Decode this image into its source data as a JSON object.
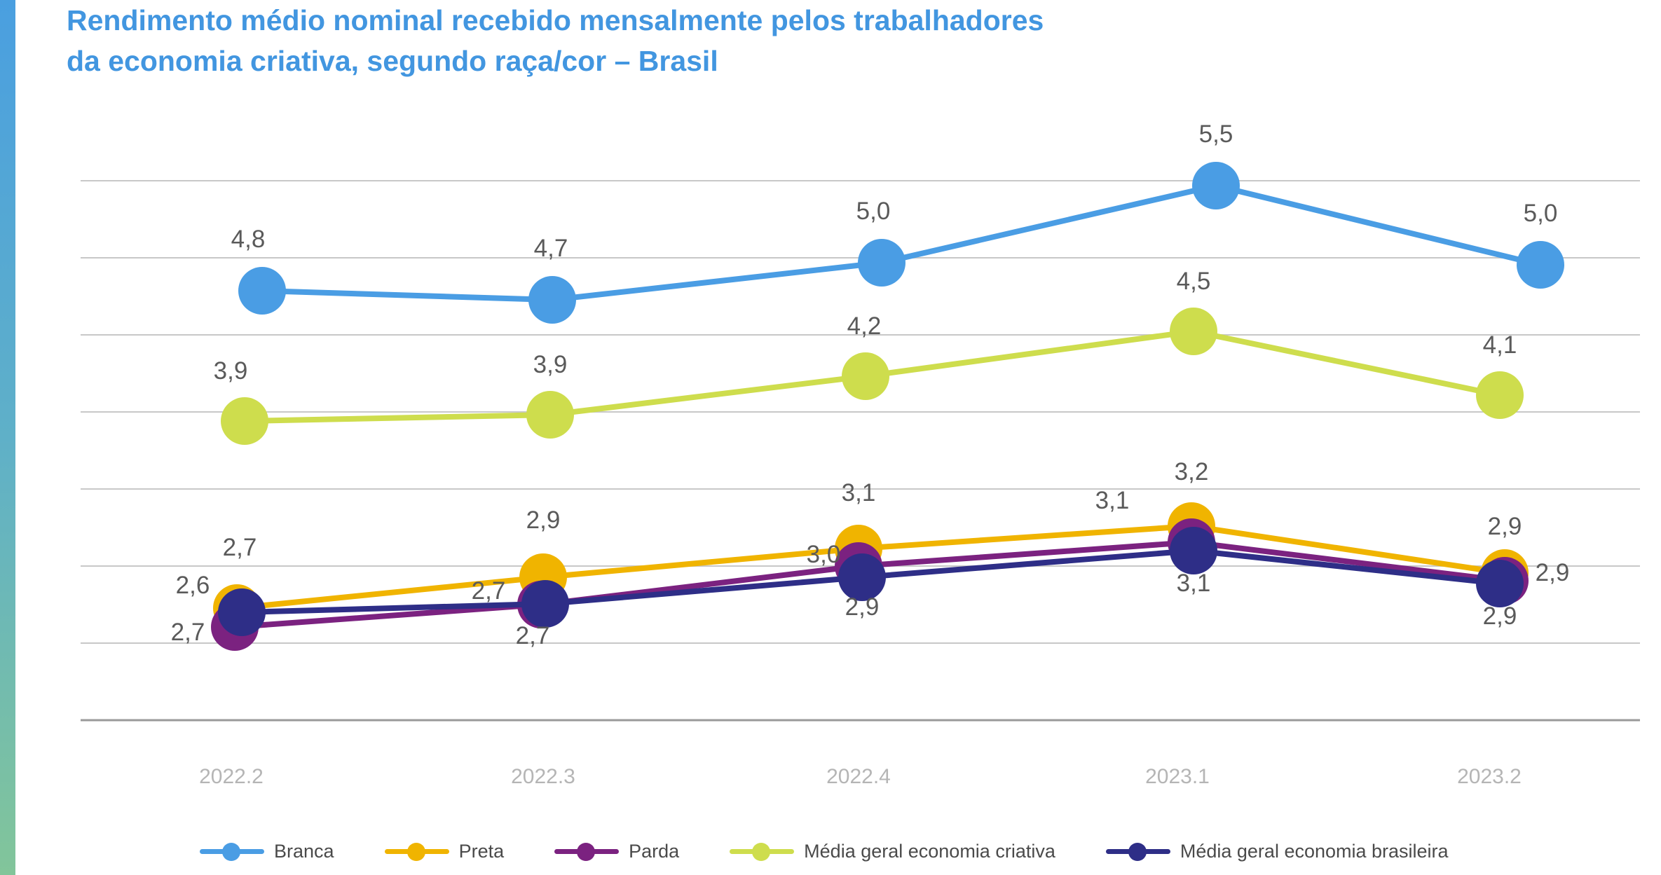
{
  "title": {
    "line1": "Rendimento médio nominal recebido mensalmente pelos trabalhadores",
    "line2": "da economia criativa, segundo raça/cor – Brasil"
  },
  "colors": {
    "title": "#4296e0",
    "side_bar": "#5fb0c8",
    "grid": "#c8c8c8",
    "tick_label": "#b5b5b5",
    "data_label": "#5a5a5a"
  },
  "chart_data": {
    "type": "line",
    "title": "Rendimento médio nominal recebido mensalmente pelos trabalhadores da economia criativa, segundo raça/cor – Brasil",
    "categories": [
      "2022.2",
      "2022.3",
      "2022.4",
      "2023.1",
      "2023.2"
    ],
    "series": [
      {
        "name": "Branca",
        "color": "#4a9de4",
        "values": [
          4.8,
          4.7,
          5.0,
          5.5,
          5.0
        ],
        "labels": [
          "4,8",
          "4,7",
          "5,0",
          "5,5",
          "5,0"
        ]
      },
      {
        "name": "Preta",
        "color": "#f0b400",
        "values": [
          2.7,
          2.9,
          3.1,
          3.2,
          2.9
        ],
        "labels": [
          "2,7",
          "2,9",
          "3,1",
          "3,2",
          "2,9"
        ]
      },
      {
        "name": "Parda",
        "color": "#7b2280",
        "values": [
          2.6,
          2.7,
          3.0,
          3.1,
          2.9
        ],
        "labels": [
          "2,6",
          "2,7",
          "3,0",
          "3,1",
          "2,9"
        ]
      },
      {
        "name": "Média geral economia criativa",
        "color": "#cedd4d",
        "values": [
          3.9,
          3.9,
          4.2,
          4.5,
          4.1
        ],
        "labels": [
          "3,9",
          "3,9",
          "4,2",
          "4,5",
          "4,1"
        ]
      },
      {
        "name": "Média geral economia brasileira",
        "color": "#2e2e87",
        "values": [
          2.7,
          2.7,
          2.9,
          3.1,
          2.9
        ],
        "labels": [
          "2,7",
          "2,7",
          "2,9",
          "3,1",
          "2,9"
        ]
      }
    ],
    "grid": true,
    "legend": "bottom"
  }
}
